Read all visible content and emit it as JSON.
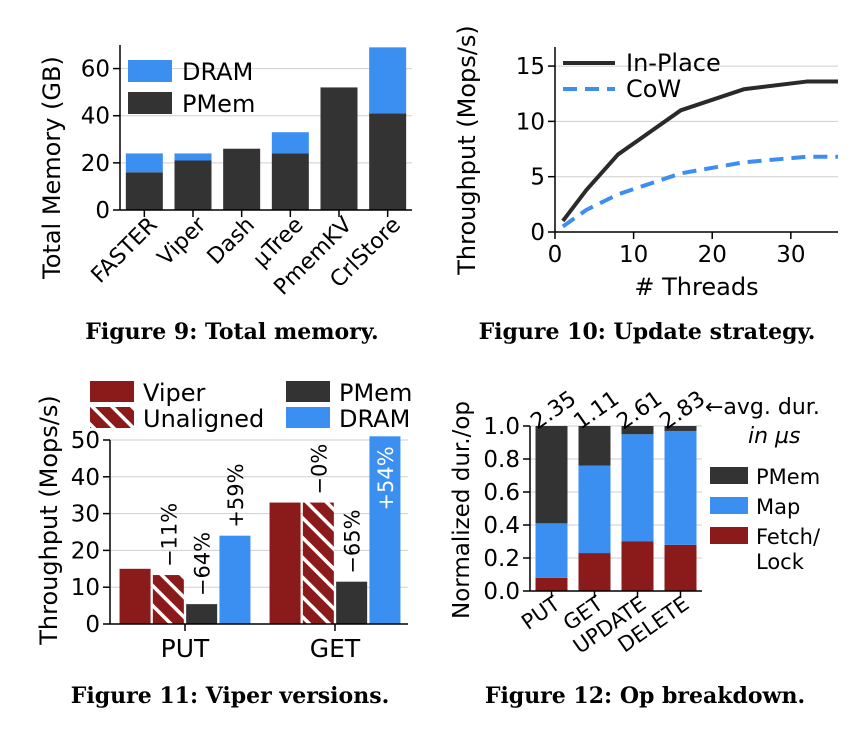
{
  "colors": {
    "dram": "#3a8ff0",
    "pmem": "#333333",
    "viper": "#8b1a1a",
    "cow": "#3a8ff0",
    "inplace": "#2a2a2a",
    "grid": "#cfcfcf"
  },
  "chart_data": [
    {
      "id": "fig9",
      "type": "bar",
      "stacked": true,
      "caption": "Figure 9: Total memory.",
      "ylabel": "Total Memory (GB)",
      "xlabel": "",
      "ylim": [
        0,
        70
      ],
      "yticks": [
        0,
        20,
        40,
        60
      ],
      "categories": [
        "FASTER",
        "Viper",
        "Dash",
        "µTree",
        "PmemKV",
        "CrlStore"
      ],
      "series": [
        {
          "name": "PMem",
          "color": "#333333",
          "values": [
            16,
            21,
            26,
            24,
            52,
            41
          ]
        },
        {
          "name": "DRAM",
          "color": "#3a8ff0",
          "values": [
            8,
            3,
            0,
            9,
            0,
            28
          ]
        }
      ],
      "legend": [
        "DRAM",
        "PMem"
      ],
      "legend_position": "top-left"
    },
    {
      "id": "fig10",
      "type": "line",
      "caption": "Figure 10: Update strategy.",
      "ylabel": "Throughput (Mops/s)",
      "xlabel": "# Threads",
      "xlim": [
        0,
        36
      ],
      "ylim": [
        0,
        16
      ],
      "xticks": [
        0,
        10,
        20,
        30
      ],
      "yticks": [
        0,
        5,
        10,
        15
      ],
      "x": [
        1,
        4,
        8,
        16,
        24,
        32,
        36
      ],
      "series": [
        {
          "name": "In-Place",
          "style": "solid",
          "color": "#2a2a2a",
          "values": [
            1.0,
            3.8,
            7.0,
            11.0,
            12.9,
            13.6,
            13.6
          ]
        },
        {
          "name": "CoW",
          "style": "dashed",
          "color": "#3a8ff0",
          "values": [
            0.5,
            2.0,
            3.4,
            5.3,
            6.3,
            6.8,
            6.8
          ]
        }
      ],
      "legend_position": "top-left"
    },
    {
      "id": "fig11",
      "type": "bar",
      "caption": "Figure 11: Viper versions.",
      "ylabel": "Throughput (Mops/s)",
      "xlabel": "",
      "ylim": [
        0,
        50
      ],
      "yticks": [
        0,
        10,
        20,
        30,
        40,
        50
      ],
      "categories": [
        "PUT",
        "GET"
      ],
      "series": [
        {
          "name": "Viper",
          "color": "#8b1a1a",
          "pattern": "solid",
          "values": [
            15,
            33
          ],
          "labels": [
            "",
            ""
          ]
        },
        {
          "name": "Unaligned",
          "color": "#8b1a1a",
          "pattern": "hatch",
          "values": [
            13.3,
            33
          ],
          "labels": [
            "−11%",
            "−0%"
          ]
        },
        {
          "name": "PMem",
          "color": "#333333",
          "pattern": "solid",
          "values": [
            5.4,
            11.5
          ],
          "labels": [
            "−64%",
            "−65%"
          ]
        },
        {
          "name": "DRAM",
          "color": "#3a8ff0",
          "pattern": "solid",
          "values": [
            24,
            51
          ],
          "labels": [
            "+59%",
            "+54%"
          ]
        }
      ],
      "legend_position": "top"
    },
    {
      "id": "fig12",
      "type": "bar",
      "stacked": true,
      "caption": "Figure 12: Op breakdown.",
      "ylabel": "Normalized dur./op",
      "xlabel": "",
      "ylim": [
        0,
        1.0
      ],
      "yticks": [
        "0.0",
        "0.2",
        "0.4",
        "0.6",
        "0.8",
        "1.0"
      ],
      "categories": [
        "PUT",
        "GET",
        "UPDATE",
        "DELETE"
      ],
      "top_labels": [
        "2.35",
        "1.11",
        "2.61",
        "2.83"
      ],
      "annotation": [
        "←avg. dur.",
        "in µs"
      ],
      "series": [
        {
          "name": "Fetch/\nLock",
          "legend_lines": [
            "Fetch/",
            "Lock"
          ],
          "color": "#8b1a1a",
          "values": [
            0.08,
            0.23,
            0.3,
            0.28
          ]
        },
        {
          "name": "Map",
          "legend_lines": [
            "Map"
          ],
          "color": "#3a8ff0",
          "values": [
            0.33,
            0.53,
            0.65,
            0.69
          ]
        },
        {
          "name": "PMem",
          "legend_lines": [
            "PMem"
          ],
          "color": "#333333",
          "values": [
            0.59,
            0.24,
            0.05,
            0.03
          ]
        }
      ],
      "legend_position": "right"
    }
  ]
}
